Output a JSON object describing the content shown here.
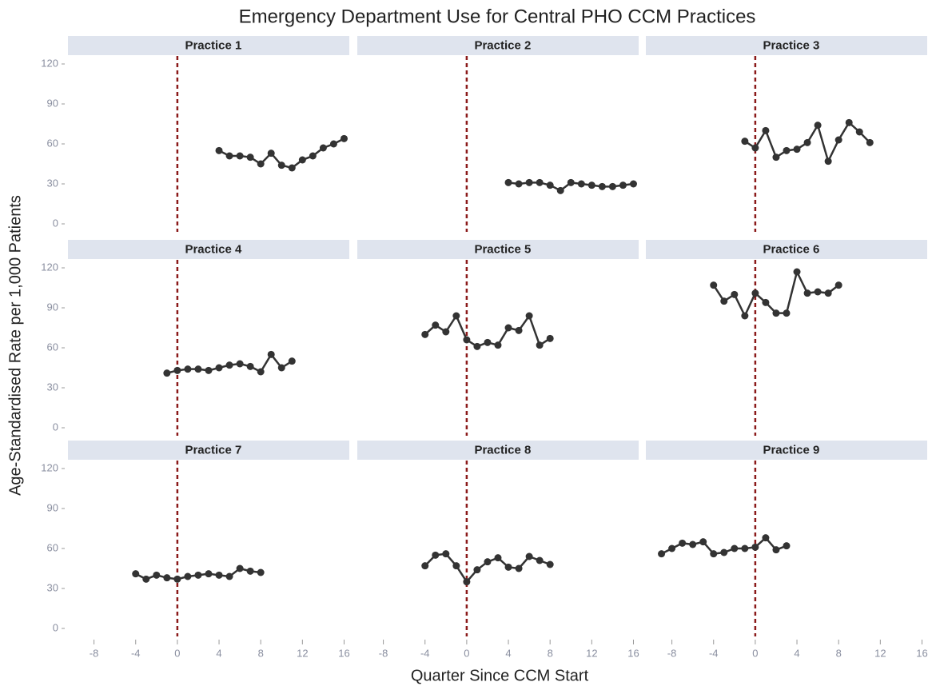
{
  "chart_data": {
    "type": "line",
    "title": "Emergency Department Use for Central PHO CCM Practices",
    "xlabel": "Quarter Since CCM Start",
    "ylabel": "Age-Standardised Rate per 1,000 Patients",
    "xlim": [
      -10.5,
      16.5
    ],
    "xticks": [
      -8,
      -4,
      0,
      4,
      8,
      12,
      16
    ],
    "ylim": [
      -6,
      126
    ],
    "yticks": [
      0,
      30,
      60,
      90,
      120
    ],
    "vline": 0,
    "color": "#333333",
    "vline_color": "#8b1a1a",
    "panels": [
      {
        "title": "Practice 1",
        "x": [
          4,
          5,
          6,
          7,
          8,
          9,
          10,
          11,
          12,
          13,
          14,
          15,
          16
        ],
        "values": [
          55,
          51,
          51,
          50,
          45,
          53,
          44,
          42,
          48,
          51,
          57,
          60,
          64
        ]
      },
      {
        "title": "Practice 2",
        "x": [
          4,
          5,
          6,
          7,
          8,
          9,
          10,
          11,
          12,
          13,
          14,
          15,
          16
        ],
        "values": [
          31,
          30,
          31,
          31,
          29,
          25,
          31,
          30,
          29,
          28,
          28,
          29,
          30
        ]
      },
      {
        "title": "Practice 3",
        "x": [
          -1,
          0,
          1,
          2,
          3,
          4,
          5,
          6,
          7,
          8,
          9,
          10,
          11
        ],
        "values": [
          62,
          57,
          70,
          50,
          55,
          56,
          61,
          74,
          47,
          63,
          76,
          69,
          61
        ]
      },
      {
        "title": "Practice 4",
        "x": [
          -1,
          0,
          1,
          2,
          3,
          4,
          5,
          6,
          7,
          8,
          9,
          10,
          11
        ],
        "values": [
          41,
          43,
          44,
          44,
          43,
          45,
          47,
          48,
          46,
          42,
          55,
          45,
          50
        ]
      },
      {
        "title": "Practice 5",
        "x": [
          -4,
          -3,
          -2,
          -1,
          0,
          1,
          2,
          3,
          4,
          5,
          6,
          7,
          8
        ],
        "values": [
          70,
          77,
          72,
          84,
          66,
          61,
          64,
          62,
          75,
          73,
          84,
          62,
          67
        ]
      },
      {
        "title": "Practice 6",
        "x": [
          -4,
          -3,
          -2,
          -1,
          0,
          1,
          2,
          3,
          4,
          5,
          6,
          7,
          8
        ],
        "values": [
          107,
          95,
          100,
          84,
          101,
          94,
          86,
          86,
          117,
          101,
          102,
          101,
          107
        ]
      },
      {
        "title": "Practice 7",
        "x": [
          -4,
          -3,
          -2,
          -1,
          0,
          1,
          2,
          3,
          4,
          5,
          6,
          7,
          8
        ],
        "values": [
          41,
          37,
          40,
          38,
          37,
          39,
          40,
          41,
          40,
          39,
          45,
          43,
          42
        ]
      },
      {
        "title": "Practice 8",
        "x": [
          -4,
          -3,
          -2,
          -1,
          0,
          1,
          2,
          3,
          4,
          5,
          6,
          7,
          8
        ],
        "values": [
          47,
          55,
          56,
          47,
          35,
          44,
          50,
          53,
          46,
          45,
          54,
          51,
          48
        ]
      },
      {
        "title": "Practice 9",
        "x": [
          -9,
          -8,
          -7,
          -6,
          -5,
          -4,
          -3,
          -2,
          -1,
          0,
          1,
          2,
          3
        ],
        "values": [
          56,
          60,
          64,
          63,
          65,
          56,
          57,
          60,
          60,
          61,
          68,
          59,
          62
        ]
      }
    ]
  }
}
